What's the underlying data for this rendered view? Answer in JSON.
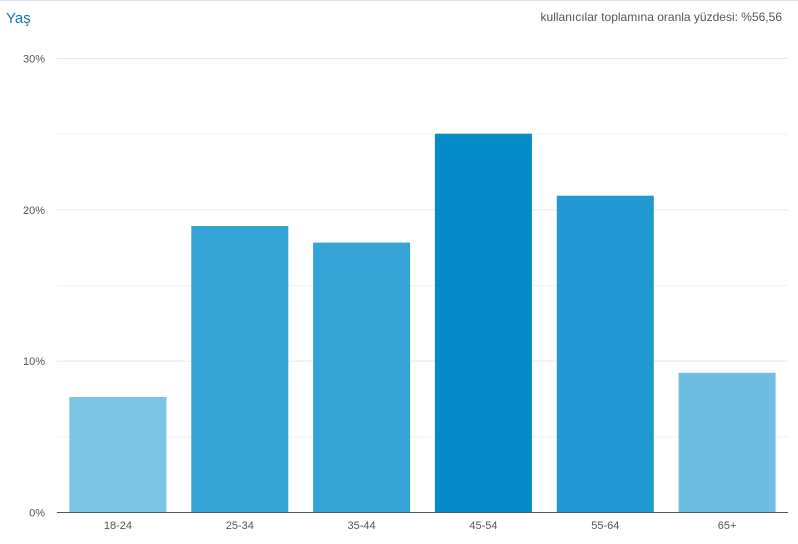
{
  "header": {
    "title": "Yaş",
    "summary": "kullanıcılar toplamına oranla yüzdesi: %56,56"
  },
  "chart_data": {
    "type": "bar",
    "title": "Yaş",
    "categories": [
      "18-24",
      "25-34",
      "35-44",
      "45-54",
      "55-64",
      "65+"
    ],
    "values": [
      7.6,
      18.9,
      17.8,
      25.0,
      20.9,
      9.2
    ],
    "colors": [
      "#7bc4e4",
      "#35a3d6",
      "#35a3d6",
      "#0489c9",
      "#2298d2",
      "#6cbee3"
    ],
    "ylim": [
      0,
      30
    ],
    "yticks": [
      {
        "value": 0,
        "label": "0%"
      },
      {
        "value": 10,
        "label": "10%"
      },
      {
        "value": 20,
        "label": "20%"
      },
      {
        "value": 30,
        "label": "30%"
      }
    ],
    "minor_gridlines": [
      5,
      15,
      25
    ],
    "grid": true,
    "xlabel": "",
    "ylabel": ""
  }
}
